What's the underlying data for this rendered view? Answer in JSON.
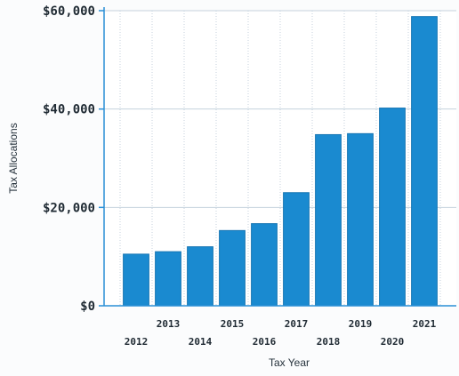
{
  "chart_data": {
    "type": "bar",
    "categories": [
      "2012",
      "2013",
      "2014",
      "2015",
      "2016",
      "2017",
      "2018",
      "2019",
      "2020",
      "2021"
    ],
    "values": [
      10500,
      11000,
      12000,
      15300,
      16700,
      23000,
      34800,
      35000,
      40200,
      58800
    ],
    "ylim": [
      0,
      60000
    ],
    "yticks": [
      0,
      20000,
      40000,
      60000
    ],
    "ytick_labels": [
      "$0",
      "$20,000",
      "$40,000",
      "$60,000"
    ],
    "xlabel": "Tax Year",
    "ylabel": "Tax Allocations",
    "title": "",
    "grid": true,
    "colors": {
      "bar": "#1a8ad0",
      "bar_edge": "#1575b3",
      "grid": "#c4d2dd",
      "axis": "#2a8fd6",
      "plot_bg": "#ffffff"
    }
  }
}
